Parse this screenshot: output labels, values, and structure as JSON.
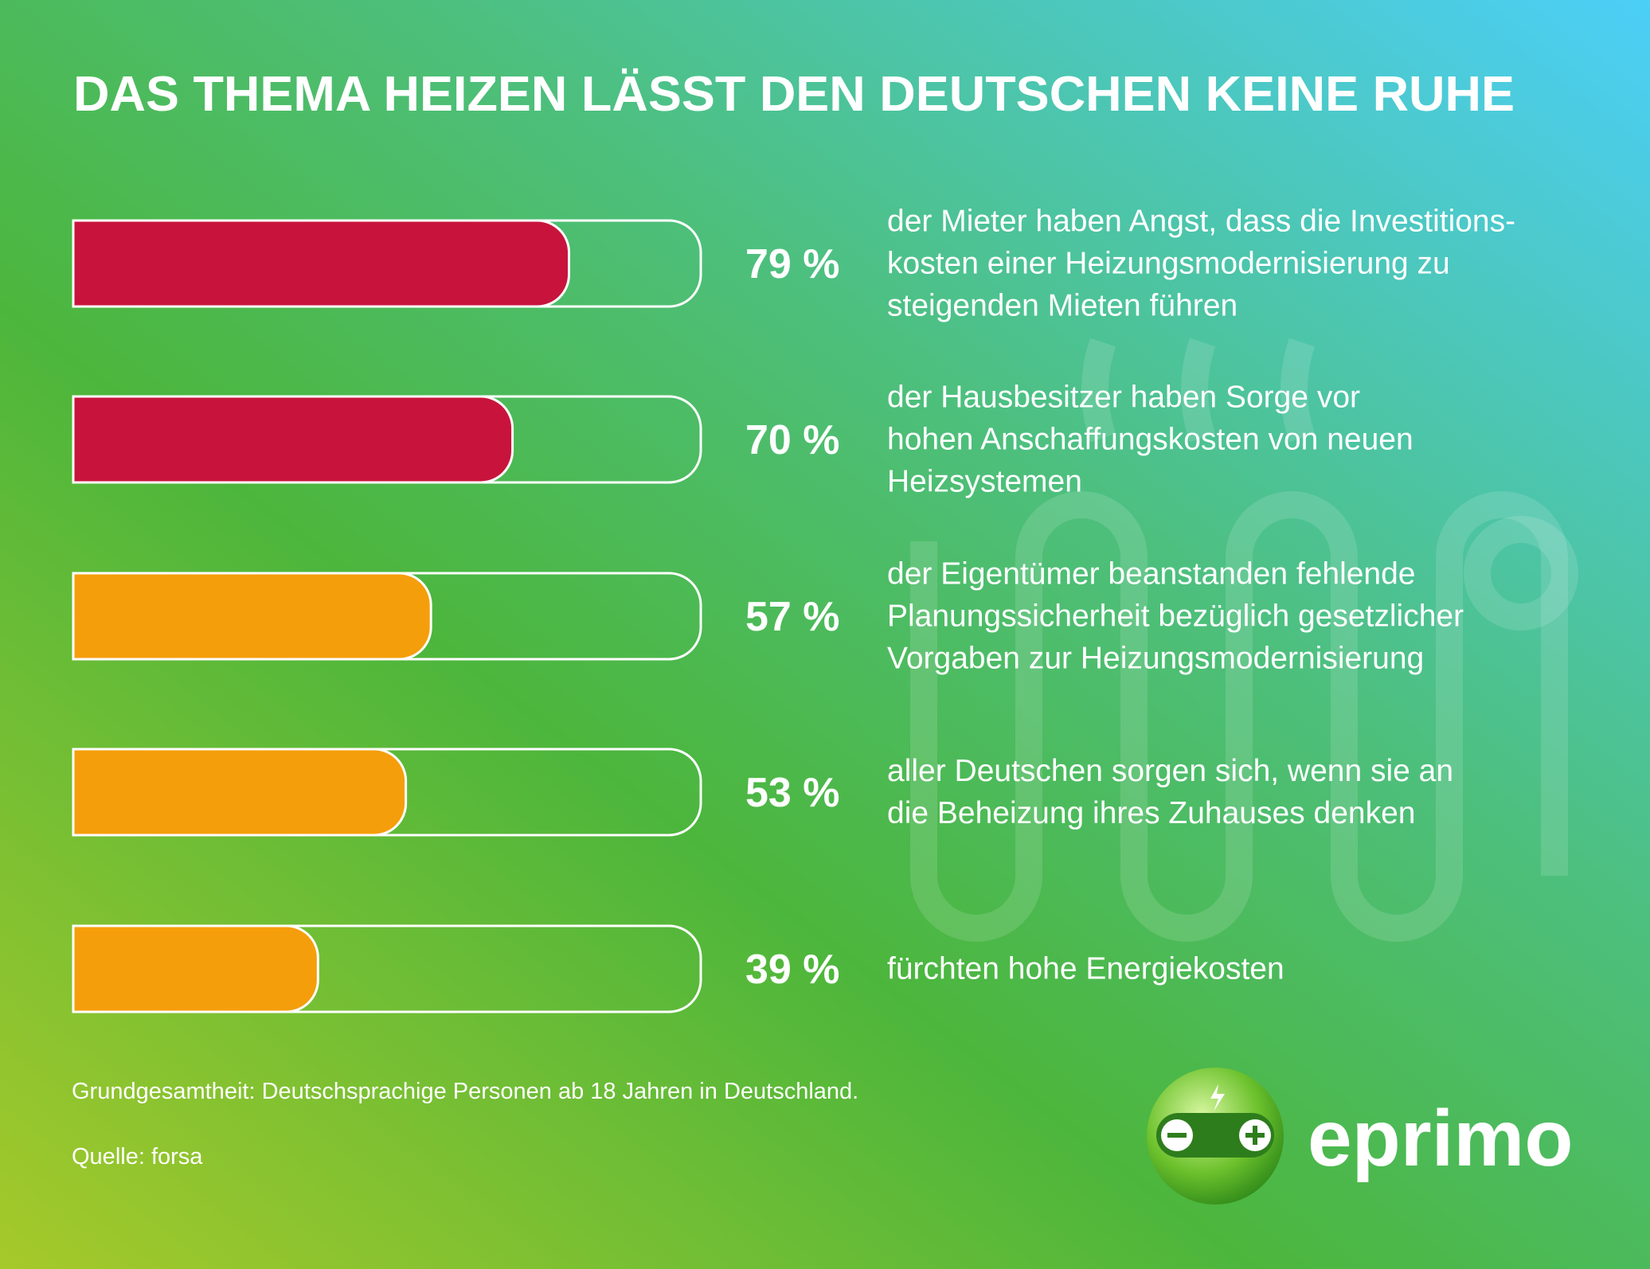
{
  "chart_data": {
    "type": "bar",
    "orientation": "horizontal",
    "title": "DAS THEMA HEIZEN LÄSST DEN DEUTSCHEN KEINE RUHE",
    "categories": [
      "der Mieter haben Angst, dass die Investitions-\nkosten einer Heizungsmodernisierung zu\nsteigenden Mieten führen",
      "der Hausbesitzer haben Sorge vor\nhohen Anschaffungskosten von neuen\nHeizsystemen",
      "der Eigentümer beanstanden fehlende\nPlanungssicherheit bezüglich gesetzlicher\nVorgaben zur Heizungsmodernisierung",
      "aller Deutschen sorgen sich, wenn sie an\ndie Beheizung ihres Zuhauses denken",
      "fürchten hohe Energiekosten"
    ],
    "values": [
      79,
      70,
      57,
      53,
      39
    ],
    "value_labels": [
      "79 %",
      "70 %",
      "57 %",
      "53 %",
      "39 %"
    ],
    "colors": [
      "#c8143c",
      "#c8143c",
      "#f59e0b",
      "#f59e0b",
      "#f59e0b"
    ],
    "xlim": [
      0,
      100
    ]
  },
  "footnotes": [
    "Grundgesamtheit: Deutschsprachige Personen ab 18 Jahren in Deutschland.",
    "Quelle: forsa"
  ],
  "logo": {
    "text": "eprimo"
  }
}
